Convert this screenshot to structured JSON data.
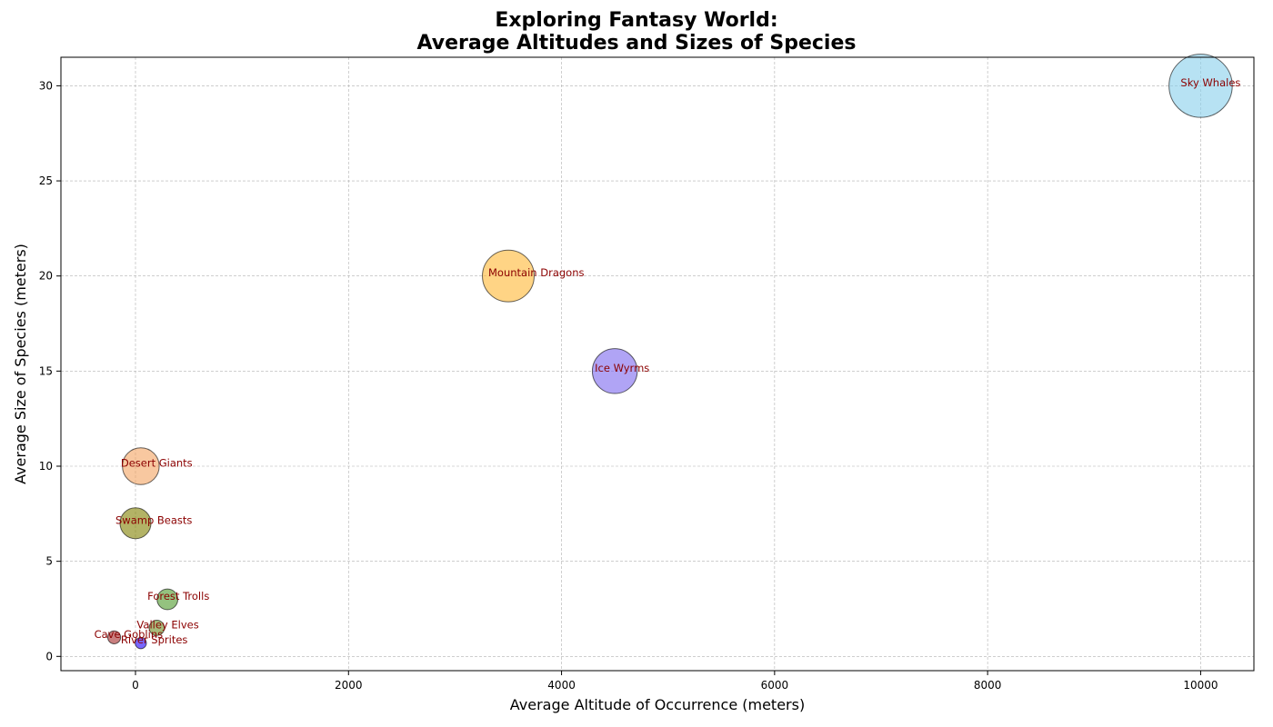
{
  "chart_data": {
    "type": "scatter",
    "title_line1": "Exploring Fantasy World:",
    "title_line2": "Average Altitudes and Sizes of Species",
    "xlabel": "Average Altitude of Occurrence (meters)",
    "ylabel": "Average Size of Species (meters)",
    "xlim": [
      -700,
      10500
    ],
    "ylim": [
      -0.75,
      31.5
    ],
    "xticks": [
      0,
      2000,
      4000,
      6000,
      8000,
      10000
    ],
    "yticks": [
      0,
      5,
      10,
      15,
      20,
      25,
      30
    ],
    "grid": true,
    "label_color": "#8b0000",
    "points": [
      {
        "label": "Mountain Dragons",
        "x": 3500,
        "y": 20,
        "color": "#ffb733"
      },
      {
        "label": "Forest Trolls",
        "x": 300,
        "y": 3,
        "color": "#4c9a2a"
      },
      {
        "label": "Desert Giants",
        "x": 50,
        "y": 10,
        "color": "#f4a460"
      },
      {
        "label": "Swamp Beasts",
        "x": 0,
        "y": 7,
        "color": "#808000"
      },
      {
        "label": "Sky Whales",
        "x": 10000,
        "y": 30,
        "color": "#87ceeb"
      },
      {
        "label": "Cave Goblins",
        "x": -200,
        "y": 1,
        "color": "#a52a2a"
      },
      {
        "label": "Valley Elves",
        "x": 200,
        "y": 1.5,
        "color": "#6b8e23"
      },
      {
        "label": "Ice Wyrms",
        "x": 4500,
        "y": 15,
        "color": "#7b68ee"
      },
      {
        "label": "River Sprites",
        "x": 50,
        "y": 0.7,
        "color": "#1e00ff"
      }
    ]
  }
}
